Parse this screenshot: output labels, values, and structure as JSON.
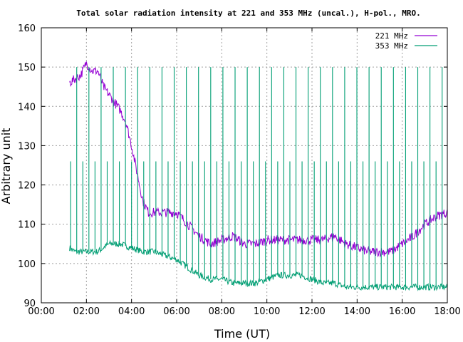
{
  "chart_data": {
    "type": "line",
    "title": "Total solar radiation intensity at 221 and 353 MHz (uncal.), H-pol., MRO.",
    "xlabel": "Time (UT)",
    "ylabel": "Arbitrary unit",
    "xlim_hours": [
      0,
      18
    ],
    "ylim": [
      90,
      160
    ],
    "x_tick_labels": [
      "00:00",
      "02:00",
      "04:00",
      "06:00",
      "08:00",
      "10:00",
      "12:00",
      "14:00",
      "16:00",
      "18:00"
    ],
    "y_tick_labels": [
      "90",
      "100",
      "110",
      "120",
      "130",
      "140",
      "150",
      "160"
    ],
    "grid": "dotted",
    "legend_position": "top-right",
    "colors": {
      "series_221": "#9400d3",
      "series_353": "#009e73",
      "grid": "#a0a0a0"
    },
    "series": [
      {
        "name": "221 MHz",
        "x_hours": [
          1.25,
          1.5,
          1.75,
          2.0,
          2.25,
          2.5,
          2.75,
          3.0,
          3.25,
          3.5,
          3.75,
          4.0,
          4.25,
          4.5,
          4.75,
          5.0,
          5.5,
          6.0,
          6.5,
          7.0,
          7.5,
          8.0,
          8.5,
          9.0,
          9.5,
          10.0,
          10.5,
          11.0,
          11.5,
          12.0,
          12.5,
          13.0,
          13.5,
          14.0,
          14.5,
          15.0,
          15.5,
          16.0,
          16.5,
          17.0,
          17.5,
          18.0
        ],
        "values": [
          146,
          147,
          148,
          151,
          149,
          149,
          145,
          143,
          141,
          139,
          136,
          130,
          123,
          116,
          113,
          113,
          113,
          113,
          110,
          107,
          105,
          106,
          107,
          105,
          105,
          106,
          106,
          106,
          106,
          106,
          106,
          107,
          105,
          104,
          103,
          103,
          103,
          105,
          107,
          110,
          112,
          113
        ]
      },
      {
        "name": "353 MHz",
        "x_hours": [
          1.25,
          1.5,
          2.0,
          2.5,
          3.0,
          3.5,
          4.0,
          4.5,
          5.0,
          5.5,
          6.0,
          6.5,
          7.0,
          7.5,
          8.0,
          8.5,
          9.0,
          9.5,
          10.0,
          10.5,
          11.0,
          11.5,
          12.0,
          12.5,
          13.0,
          13.5,
          14.0,
          14.5,
          15.0,
          15.5,
          16.0,
          16.5,
          17.0,
          17.5,
          18.0
        ],
        "values": [
          104,
          103,
          103,
          103,
          105,
          105,
          104,
          103,
          103,
          102,
          101,
          99,
          97,
          96,
          96,
          95,
          95,
          95,
          96,
          97,
          97,
          97,
          96,
          95,
          95,
          94,
          94,
          94,
          94,
          94,
          94,
          94,
          94,
          94,
          94
        ]
      }
    ]
  }
}
